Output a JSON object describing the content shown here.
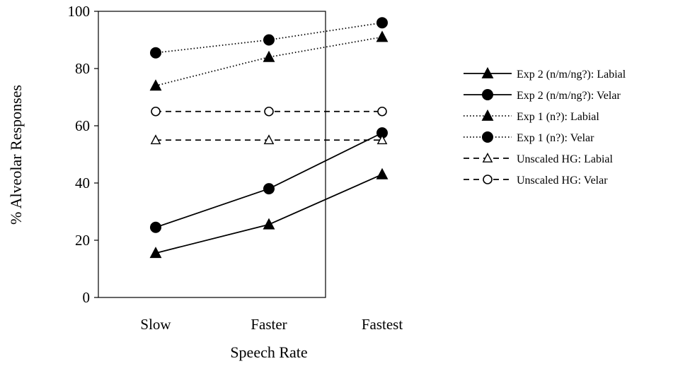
{
  "chart_data": {
    "type": "line",
    "categories": [
      "Slow",
      "Faster",
      "Fastest"
    ],
    "xlabel": "Speech Rate",
    "ylabel": "% Alveolar Responses",
    "ylim": [
      0,
      100
    ],
    "yticks": [
      0,
      20,
      40,
      60,
      80,
      100
    ],
    "grid": false,
    "legend_position": "right",
    "series": [
      {
        "name": "Exp 2 (n/m/ng?): Labial",
        "values": [
          15.5,
          25.5,
          43
        ],
        "line": "solid",
        "marker": "triangle-filled"
      },
      {
        "name": "Exp 2 (n/m/ng?): Velar",
        "values": [
          24.5,
          38,
          57.5
        ],
        "line": "solid",
        "marker": "circle-filled"
      },
      {
        "name": "Exp 1 (n?): Labial",
        "values": [
          74,
          84,
          91
        ],
        "line": "dotted",
        "marker": "triangle-filled"
      },
      {
        "name": "Exp 1 (n?): Velar",
        "values": [
          85.5,
          90,
          96
        ],
        "line": "dotted",
        "marker": "circle-filled"
      },
      {
        "name": "Unscaled HG: Labial",
        "values": [
          55,
          55,
          55
        ],
        "line": "dashed",
        "marker": "triangle-open"
      },
      {
        "name": "Unscaled HG: Velar",
        "values": [
          65,
          65,
          65
        ],
        "line": "dashed",
        "marker": "circle-open"
      }
    ]
  }
}
